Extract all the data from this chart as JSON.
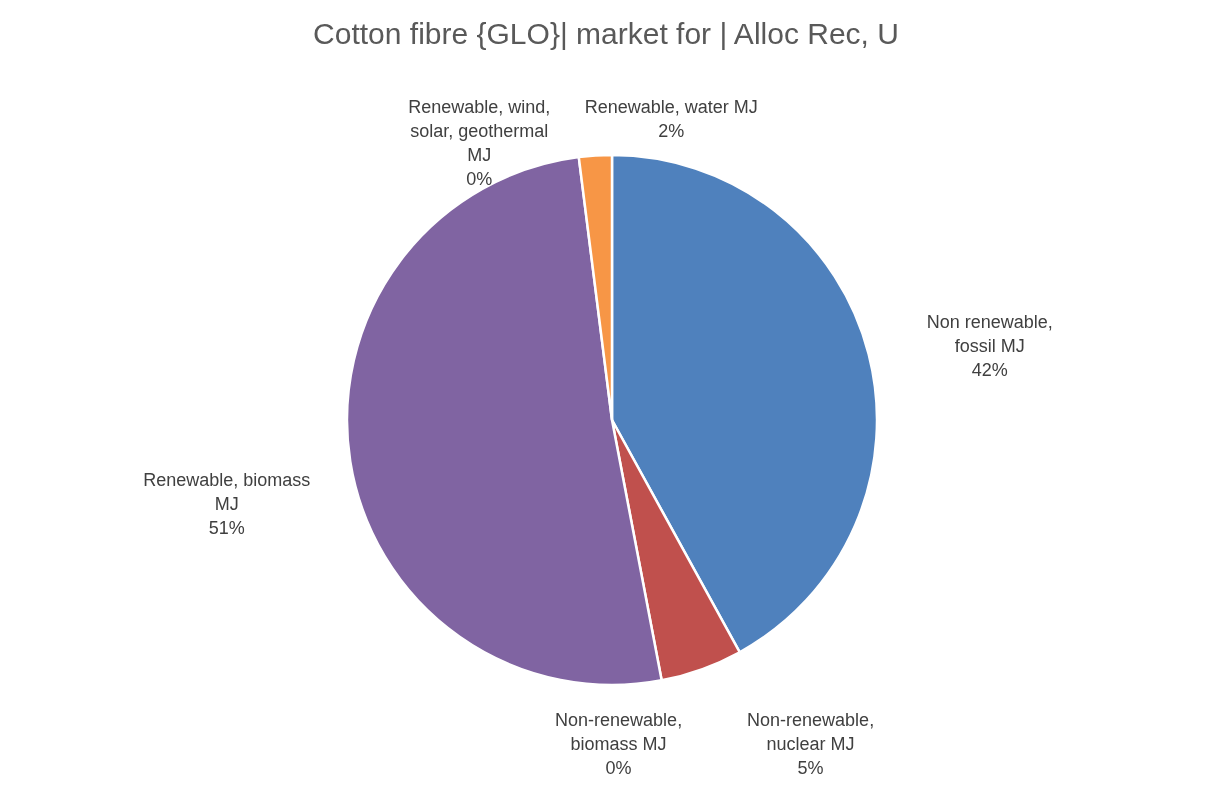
{
  "chart_data": {
    "type": "pie",
    "title": "Cotton fibre {GLO}| market for | Alloc Rec, U",
    "categories": [
      "Non renewable, fossil MJ",
      "Non-renewable, nuclear MJ",
      "Non-renewable, biomass MJ",
      "Renewable, biomass MJ",
      "Renewable, wind, solar, geothermal MJ",
      "Renewable, water MJ"
    ],
    "values": [
      42,
      5,
      0,
      51,
      0,
      2
    ],
    "value_labels": [
      "42%",
      "5%",
      "0%",
      "51%",
      "0%",
      "2%"
    ],
    "colors": [
      "#4f81bd",
      "#c0504d",
      "#9bbb59",
      "#8064a2",
      "#4bacc6",
      "#f79646"
    ]
  }
}
